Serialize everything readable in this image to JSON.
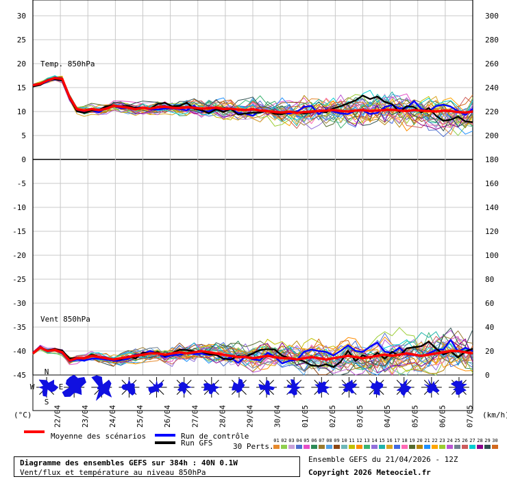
{
  "chart_data": {
    "type": "line",
    "title": "Diagramme des ensembles GEFS sur 384h : 40N 0.1W",
    "subtitle": "Vent/flux et température au niveau 850hPa",
    "run_label": "Ensemble GEFS du 21/04/2026 - 12Z",
    "copyright": "Copyright 2026 Meteociel.fr",
    "left_unit": "(°C)",
    "right_unit": "(km/h)",
    "left_axis": {
      "ticks": [
        30,
        25,
        20,
        15,
        10,
        5,
        0,
        -5,
        -10,
        -15,
        -20,
        -25,
        -30,
        -35,
        -40,
        -45
      ],
      "ylim": [
        -45,
        30
      ]
    },
    "right_axis": {
      "ticks": [
        300,
        280,
        260,
        240,
        220,
        200,
        180,
        160,
        140,
        120,
        100,
        80,
        60,
        40,
        20,
        0
      ],
      "ylim": [
        0,
        300
      ]
    },
    "x_dates": [
      "22/04",
      "23/04",
      "24/04",
      "25/04",
      "26/04",
      "27/04",
      "28/04",
      "29/04",
      "30/04",
      "01/05",
      "02/05",
      "03/05",
      "04/05",
      "05/05",
      "06/05",
      "07/05"
    ],
    "panels": {
      "temperature": {
        "label": "Temp. 850hPa",
        "unit": "°C"
      },
      "wind": {
        "label": "Vent 850hPa",
        "unit": "km/h"
      }
    },
    "mean_temperature": [
      15.5,
      15.8,
      16.5,
      17,
      16.8,
      13,
      10.5,
      10.2,
      10.5,
      10.3,
      10.6,
      11.2,
      11,
      10.8,
      10.5,
      10.8,
      10.6,
      10.9,
      11,
      10.8,
      10.7,
      10.9,
      10.8,
      10.6,
      10.7,
      10.8,
      10.5,
      10.6,
      10.4,
      10.3,
      10.5,
      10.2,
      10.1,
      9.9,
      9.8,
      10,
      9.7,
      9.9,
      10,
      10.1,
      10.2,
      10.3,
      10.1,
      10,
      10.2,
      10.3,
      10.1,
      10.2,
      10.3,
      10.4,
      10.2,
      10.1,
      10.3,
      10.2,
      10.1,
      10,
      10.2,
      10.1,
      9.9,
      9.8,
      10
    ],
    "mean_wind": [
      18,
      23,
      20,
      21,
      19,
      12,
      14,
      14,
      16,
      15,
      14,
      13,
      14,
      15,
      16,
      17,
      18,
      18,
      17,
      18,
      19,
      18,
      19,
      20,
      19,
      18,
      17,
      16,
      15,
      15,
      14,
      15,
      16,
      15,
      14,
      14,
      13,
      14,
      15,
      14,
      13,
      14,
      15,
      16,
      15,
      14,
      15,
      16,
      17,
      16,
      17,
      18,
      17,
      16,
      17,
      18,
      19,
      20,
      20,
      19,
      18
    ],
    "series": [
      {
        "name": "Moyenne des scénarios",
        "color": "#ff0000",
        "role": "mean"
      },
      {
        "name": "Run de contrôle",
        "color": "#0000ff",
        "role": "control"
      },
      {
        "name": "Run GFS",
        "color": "#000000",
        "role": "gfs"
      }
    ],
    "perturbations": {
      "label": "30 Perts.",
      "ids": [
        "01",
        "02",
        "03",
        "04",
        "05",
        "06",
        "07",
        "08",
        "09",
        "10",
        "11",
        "12",
        "13",
        "14",
        "15",
        "16",
        "17",
        "18",
        "19",
        "20",
        "21",
        "22",
        "23",
        "24",
        "25",
        "26",
        "27",
        "28",
        "29",
        "30"
      ],
      "colors": [
        "#e68a2e",
        "#8fcf4f",
        "#c8a0d8",
        "#4f6fcf",
        "#e64fc8",
        "#2e8b57",
        "#9b7b2e",
        "#4fa0e6",
        "#8b4513",
        "#6fb8b8",
        "#c0c000",
        "#ff8c00",
        "#3cb371",
        "#9370db",
        "#20b2aa",
        "#daa520",
        "#4169e1",
        "#ff69b4",
        "#556b2f",
        "#b8860b",
        "#1e90ff",
        "#ffa500",
        "#9acd32",
        "#ba55d3",
        "#708090",
        "#cd5c5c",
        "#00ced1",
        "#8b008b",
        "#2f4f4f",
        "#d2691e"
      ]
    },
    "wind_roses": [
      {
        "date": "22/04",
        "compass": [
          "N",
          "E",
          "S",
          "W"
        ]
      },
      {
        "date": "23/04"
      },
      {
        "date": "24/04"
      },
      {
        "date": "25/04"
      },
      {
        "date": "26/04"
      },
      {
        "date": "27/04"
      },
      {
        "date": "28/04"
      },
      {
        "date": "29/04"
      },
      {
        "date": "30/04"
      },
      {
        "date": "01/05"
      },
      {
        "date": "02/05"
      },
      {
        "date": "03/05"
      },
      {
        "date": "04/05"
      },
      {
        "date": "05/05"
      },
      {
        "date": "06/05"
      },
      {
        "date": "07/05"
      }
    ]
  }
}
